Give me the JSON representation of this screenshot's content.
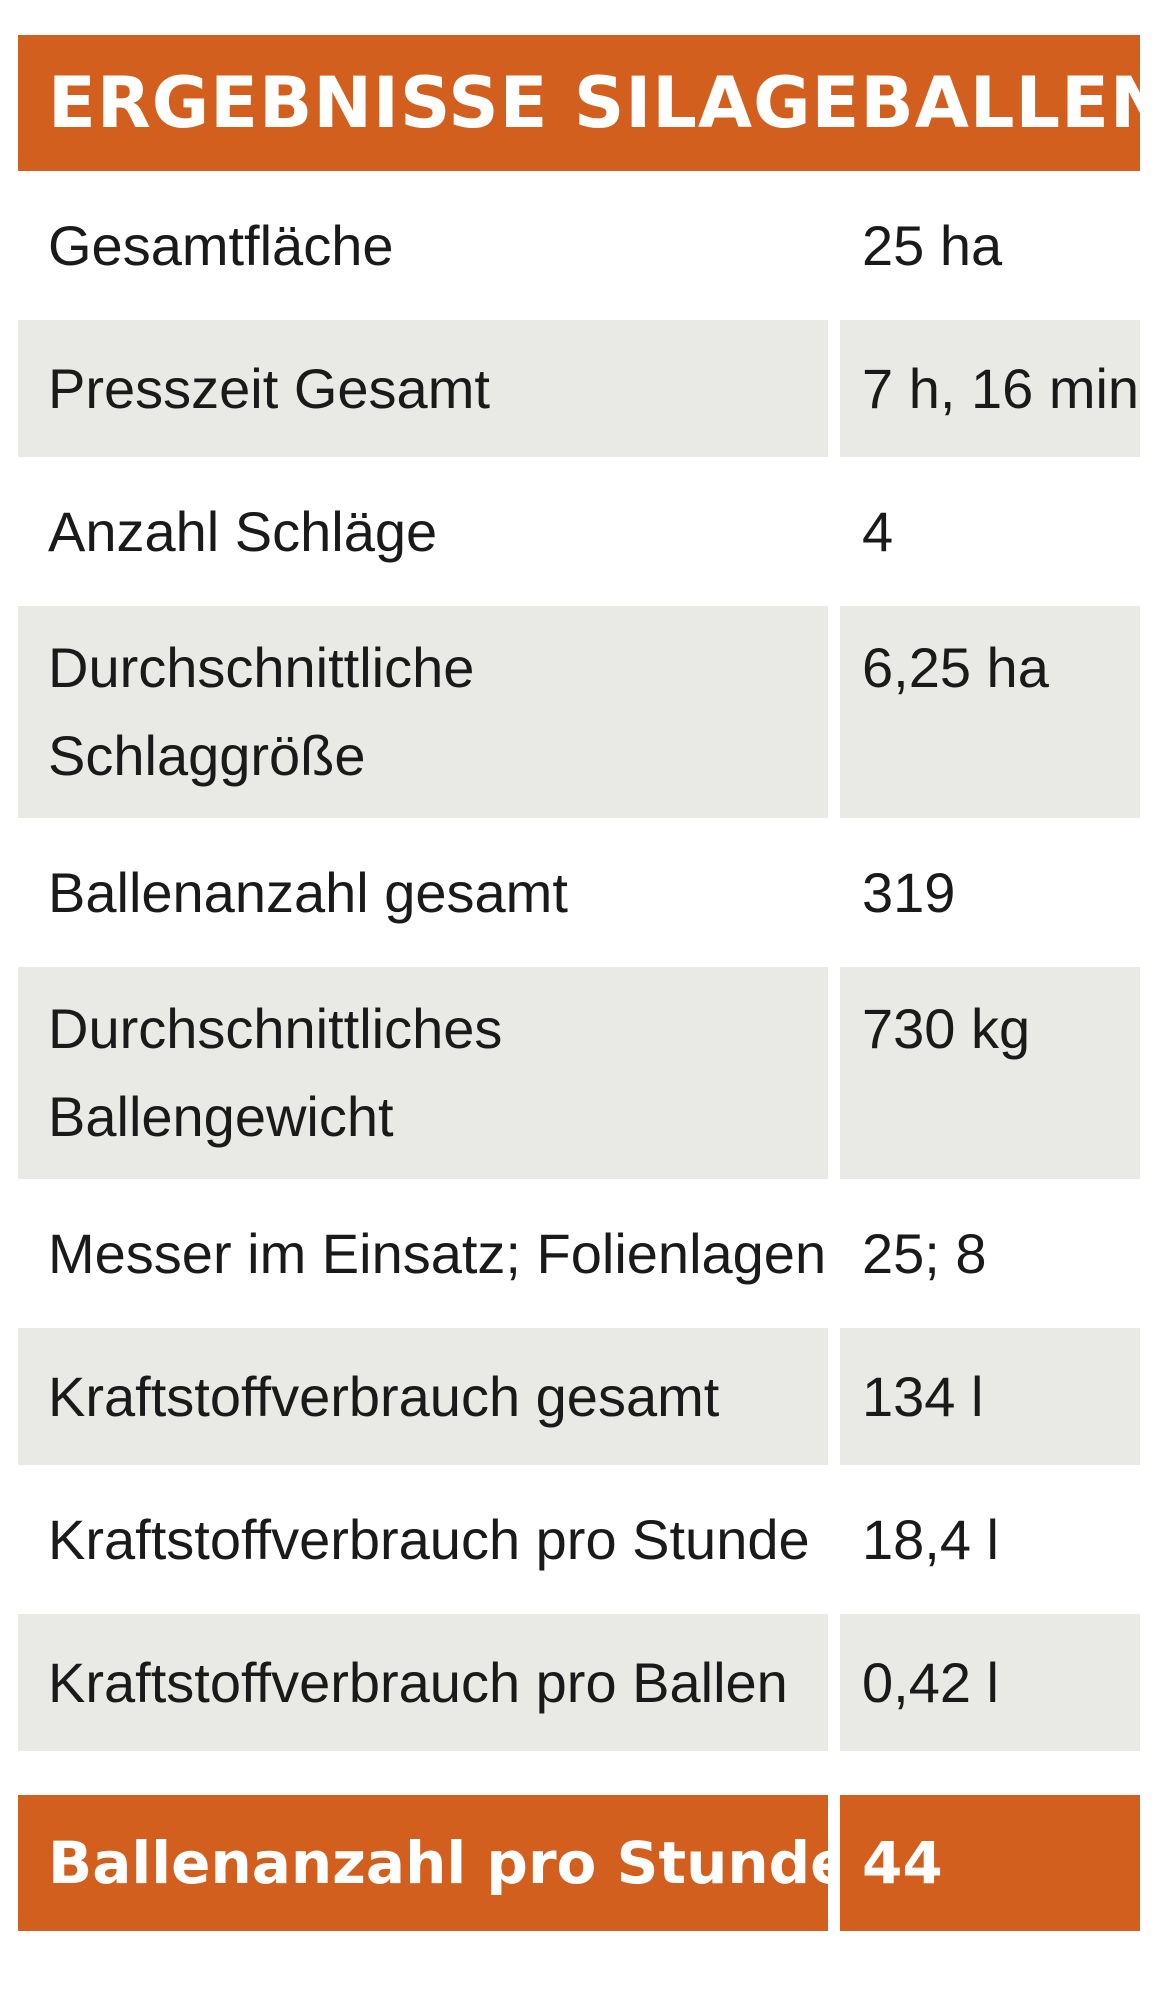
{
  "title": "ERGEBNISSE SILAGEBALLEN",
  "rows": [
    {
      "label": "Gesamtfläche",
      "value": "25 ha"
    },
    {
      "label": "Presszeit Gesamt",
      "value": "7 h, 16 min"
    },
    {
      "label": "Anzahl Schläge",
      "value": "4"
    },
    {
      "label_line1": "Durchschnittliche",
      "label_line2": "Schlaggröße",
      "value": "6,25 ha"
    },
    {
      "label": "Ballenanzahl gesamt",
      "value": "319"
    },
    {
      "label_line1": "Durchschnittliches",
      "label_line2": "Ballengewicht",
      "value": "730 kg"
    },
    {
      "label": "Messer im Einsatz; Folienlagen",
      "value": "25; 8"
    },
    {
      "label": "Kraftstoffverbrauch gesamt",
      "value": "134 l"
    },
    {
      "label": "Kraftstoffverbrauch pro Stunde",
      "value": "18,4 l"
    },
    {
      "label": "Kraftstoffverbrauch pro Ballen",
      "value": "0,42 l"
    }
  ],
  "total": {
    "label": "Ballenanzahl pro Stunde",
    "value": "44"
  },
  "colors": {
    "accent": "#d35f1f",
    "row_shade": "#e9e9e6"
  }
}
